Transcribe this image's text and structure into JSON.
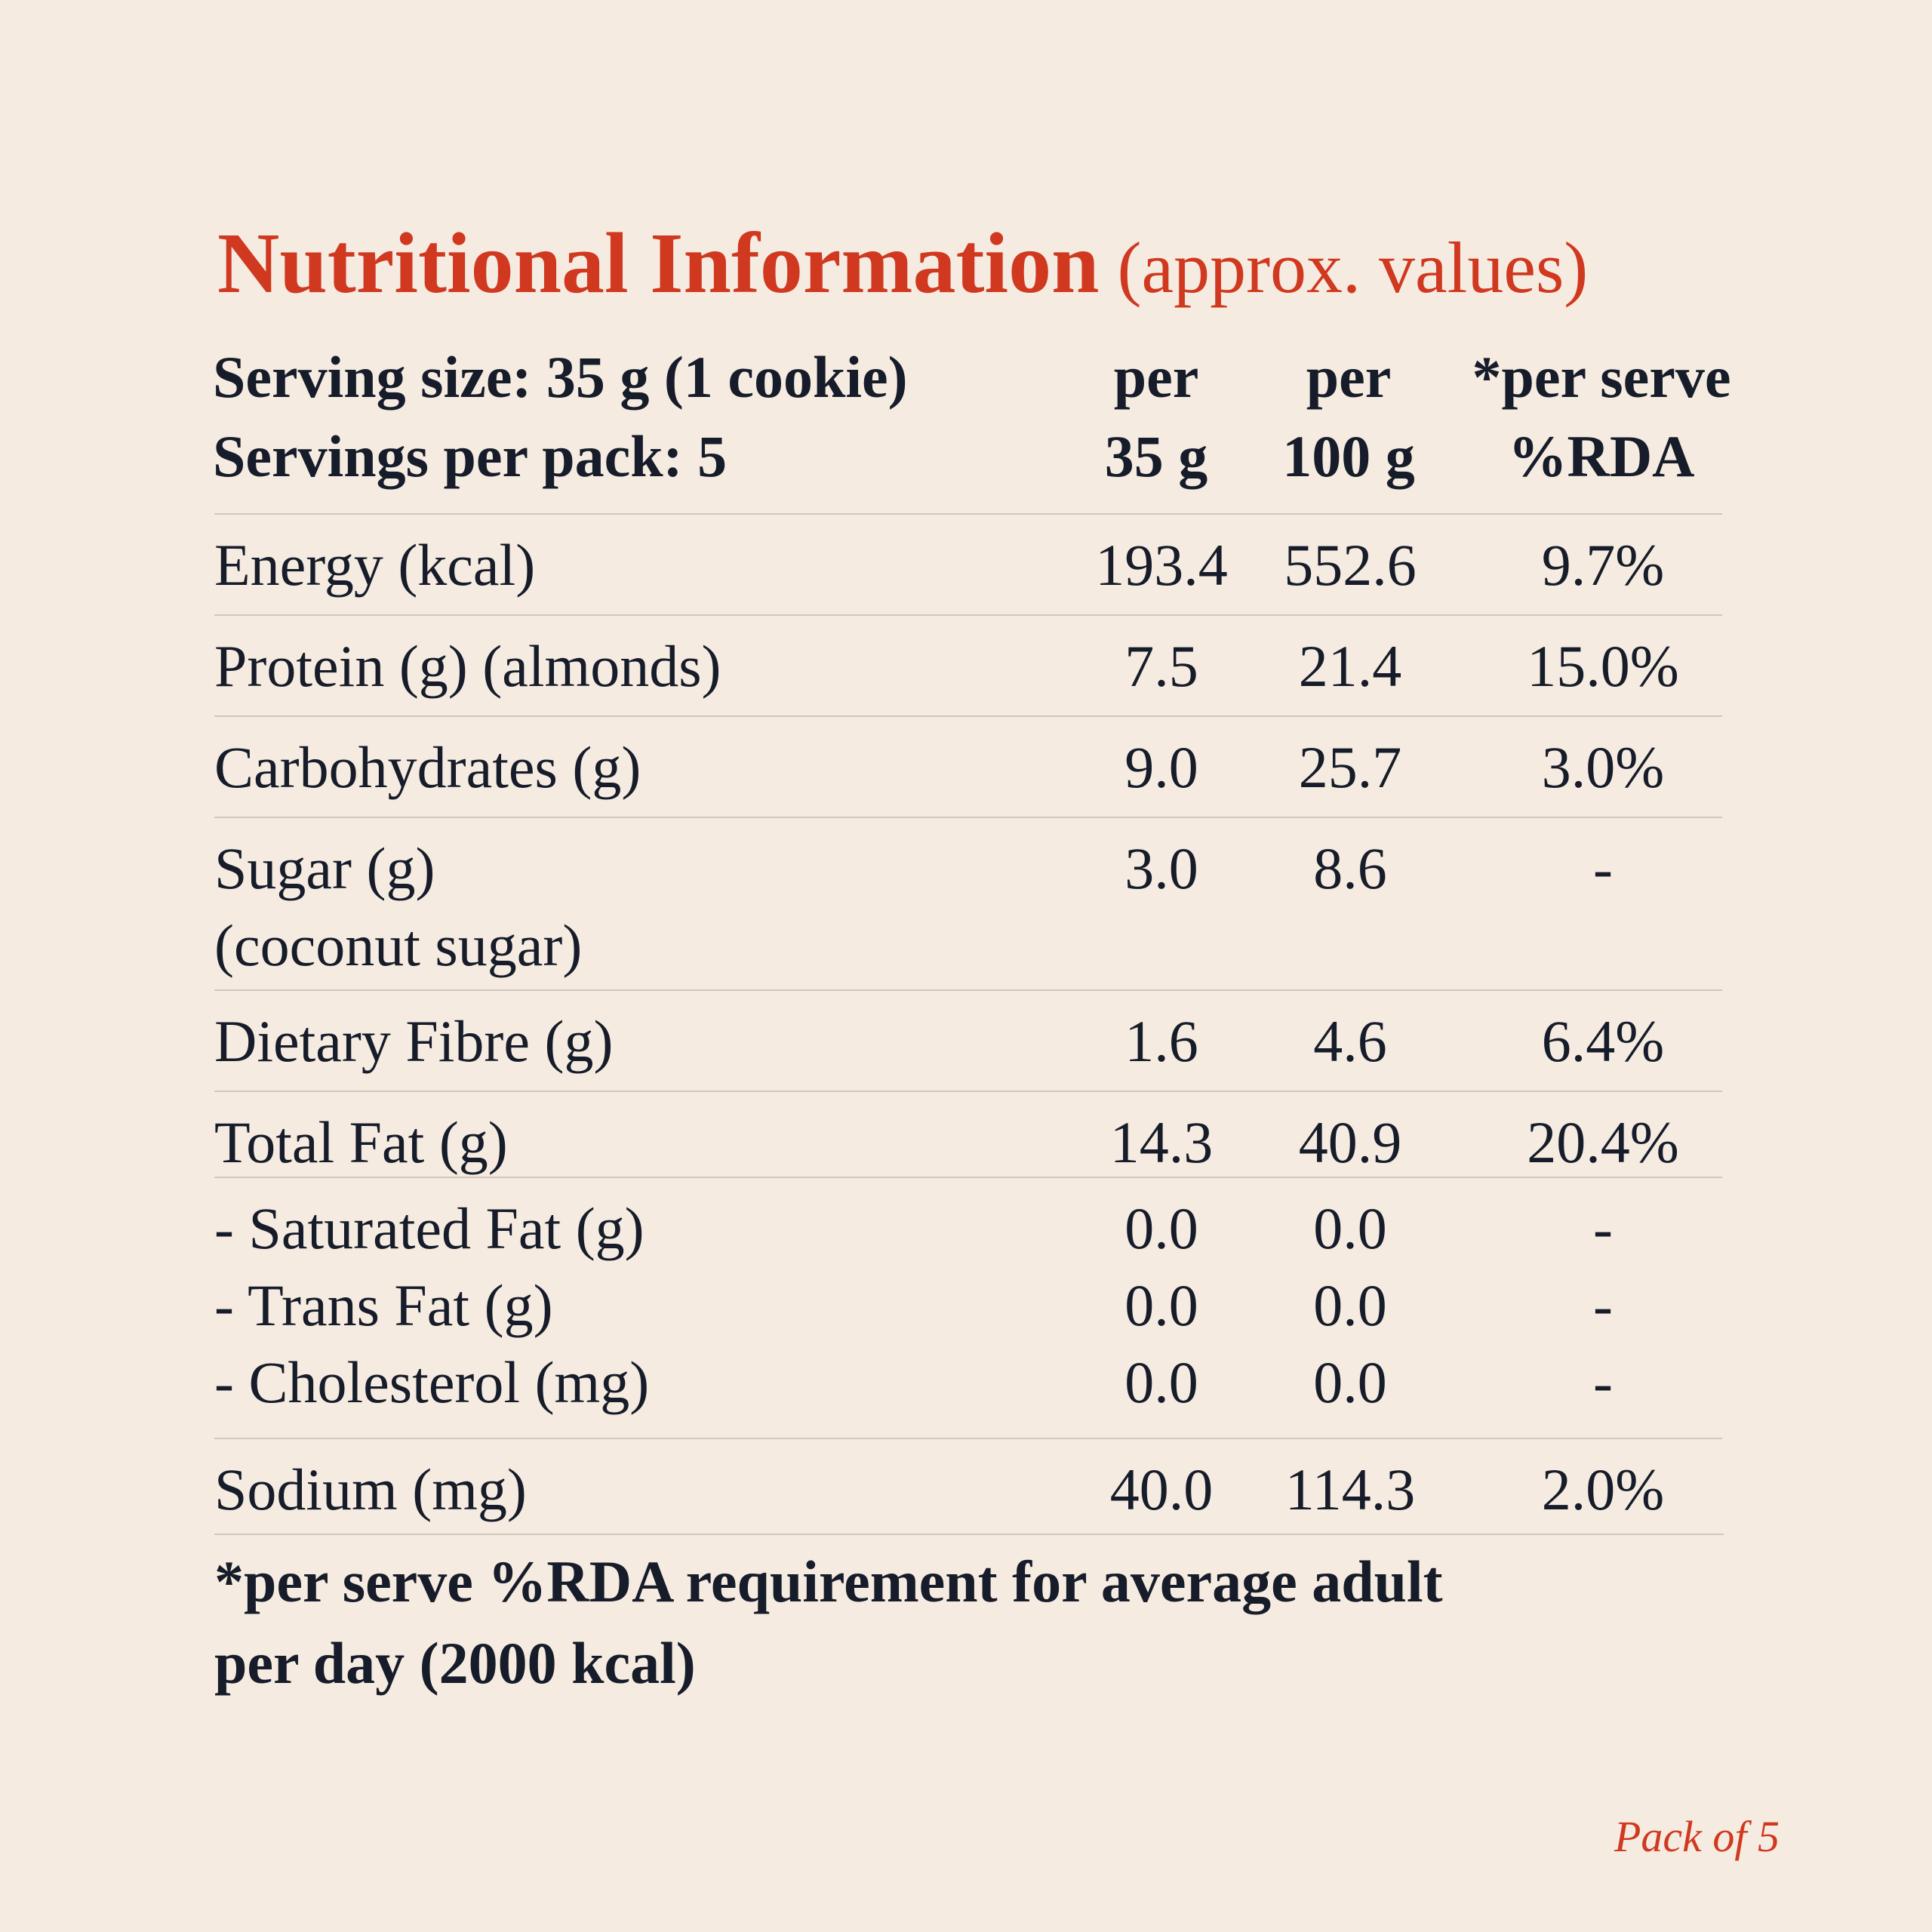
{
  "colors": {
    "background": "#f5ebe1",
    "accent": "#d0391f",
    "text": "#161c29",
    "rule": "#d2c7ba"
  },
  "title": {
    "main": "Nutritional Information",
    "sub": "(approx. values)"
  },
  "header": {
    "serving_size": "Serving size: 35 g (1 cookie)",
    "servings_per_pack": "Servings per pack: 5",
    "col1_line1": "per",
    "col1_line2": "35 g",
    "col2_line1": "per",
    "col2_line2": "100 g",
    "col3_line1": "*per serve",
    "col3_line2": "%RDA"
  },
  "rows": [
    {
      "lines": [
        "Energy (kcal)"
      ],
      "per35": [
        "193.4"
      ],
      "per100": [
        "552.6"
      ],
      "rda": [
        "9.7%"
      ]
    },
    {
      "lines": [
        "Protein (g) (almonds)"
      ],
      "per35": [
        "7.5"
      ],
      "per100": [
        "21.4"
      ],
      "rda": [
        "15.0%"
      ]
    },
    {
      "lines": [
        "Carbohydrates (g)"
      ],
      "per35": [
        "9.0"
      ],
      "per100": [
        "25.7"
      ],
      "rda": [
        "3.0%"
      ]
    },
    {
      "lines": [
        "Sugar (g)",
        "(coconut sugar)"
      ],
      "per35": [
        "3.0"
      ],
      "per100": [
        "8.6"
      ],
      "rda": [
        "-"
      ]
    },
    {
      "lines": [
        "Dietary Fibre (g)"
      ],
      "per35": [
        "1.6"
      ],
      "per100": [
        "4.6"
      ],
      "rda": [
        "6.4%"
      ]
    },
    {
      "lines": [
        "Total Fat (g)"
      ],
      "per35": [
        "14.3"
      ],
      "per100": [
        "40.9"
      ],
      "rda": [
        "20.4%"
      ]
    },
    {
      "lines": [
        "- Saturated Fat (g)",
        "- Trans Fat (g)",
        "- Cholesterol (mg)"
      ],
      "per35": [
        "0.0",
        "0.0",
        "0.0"
      ],
      "per100": [
        "0.0",
        "0.0",
        "0.0"
      ],
      "rda": [
        "-",
        "-",
        "-"
      ]
    },
    {
      "lines": [
        "Sodium (mg)"
      ],
      "per35": [
        "40.0"
      ],
      "per100": [
        "114.3"
      ],
      "rda": [
        "2.0%"
      ]
    }
  ],
  "footnote": {
    "line1": "*per serve %RDA requirement for average adult",
    "line2": "per day (2000 kcal)"
  },
  "pack_label": "Pack of 5"
}
